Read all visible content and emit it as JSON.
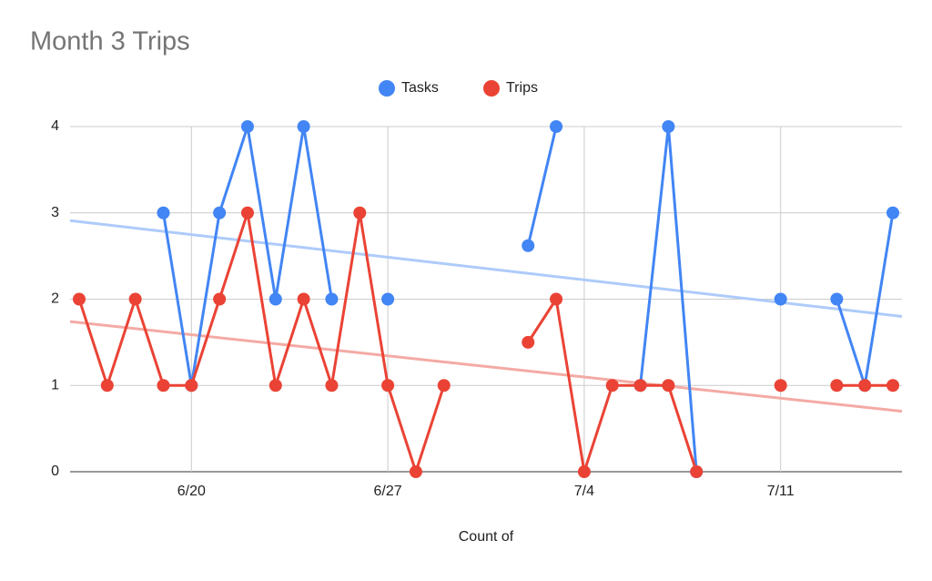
{
  "chart_data": {
    "type": "line",
    "title": "Month 3 Trips",
    "x_label": "Count of",
    "categories": [
      null,
      null,
      null,
      null,
      "6/20",
      null,
      null,
      null,
      null,
      null,
      null,
      "6/27",
      null,
      null,
      null,
      null,
      null,
      null,
      "7/4",
      null,
      null,
      null,
      null,
      null,
      null,
      "7/11",
      null,
      null,
      null,
      null
    ],
    "series": [
      {
        "name": "Tasks",
        "color": "#4285f4",
        "trendline_color": "#aecbfa",
        "values": [
          null,
          null,
          null,
          3,
          1,
          3,
          4,
          2,
          4,
          2,
          null,
          2,
          null,
          null,
          null,
          null,
          2.62,
          4,
          null,
          null,
          1,
          4,
          0,
          null,
          null,
          2,
          null,
          2,
          1,
          3
        ],
        "trendline": [
          2.91,
          1.8
        ]
      },
      {
        "name": "Trips",
        "color": "#ea4335",
        "trendline_color": "#f4aaa4",
        "values": [
          2,
          1,
          2,
          1,
          1,
          2,
          3,
          1,
          2,
          1,
          3,
          1,
          0,
          1,
          null,
          null,
          1.5,
          2,
          0,
          1,
          1,
          1,
          0,
          null,
          null,
          1,
          null,
          1,
          1,
          1
        ],
        "trendline": [
          1.74,
          0.7
        ]
      }
    ],
    "ylim": [
      0,
      4
    ],
    "yticks": [
      0,
      1,
      2,
      3,
      4
    ],
    "grid": true,
    "legend": "top"
  }
}
